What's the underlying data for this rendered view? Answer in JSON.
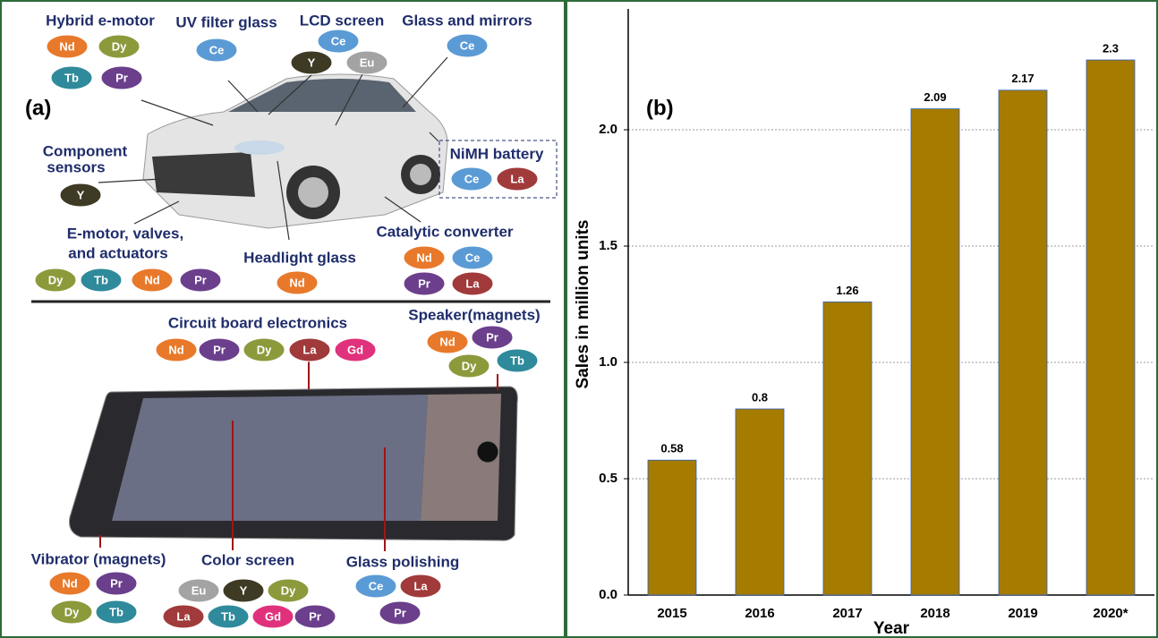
{
  "diagram": {
    "panel_label": "(a)",
    "colors": {
      "Nd": "#e8792a",
      "Dy": "#8c9a3b",
      "Tb": "#2f8a9b",
      "Pr": "#6b3f8c",
      "Ce": "#5b9bd5",
      "Y": "#3f3a24",
      "Eu": "#a3a3a3",
      "La": "#a13a3a",
      "Gd": "#e0327c"
    },
    "groups": [
      {
        "label": [
          "Hybrid e-motor"
        ],
        "elements": [
          "Nd",
          "Dy",
          "Tb",
          "Pr"
        ]
      },
      {
        "label": [
          "UV filter glass"
        ],
        "elements": [
          "Ce"
        ]
      },
      {
        "label": [
          "LCD screen"
        ],
        "elements": [
          "Ce",
          "Y",
          "Eu"
        ]
      },
      {
        "label": [
          "Glass and mirrors"
        ],
        "elements": [
          "Ce"
        ]
      },
      {
        "label": [
          "Component",
          "sensors"
        ],
        "elements": [
          "Y"
        ]
      },
      {
        "label": [
          "NiMH battery"
        ],
        "elements": [
          "Ce",
          "La"
        ]
      },
      {
        "label": [
          "E-motor, valves,",
          "and actuators"
        ],
        "elements": [
          "Dy",
          "Tb",
          "Nd",
          "Pr"
        ]
      },
      {
        "label": [
          "Headlight glass"
        ],
        "elements": [
          "Nd"
        ]
      },
      {
        "label": [
          "Catalytic converter"
        ],
        "elements": [
          "Nd",
          "Ce",
          "Pr",
          "La"
        ]
      },
      {
        "label": [
          "Circuit board electronics"
        ],
        "elements": [
          "Nd",
          "Pr",
          "Dy",
          "La",
          "Gd"
        ]
      },
      {
        "label": [
          "Speaker(magnets)"
        ],
        "elements": [
          "Nd",
          "Pr",
          "Dy",
          "Tb"
        ]
      },
      {
        "label": [
          "Vibrator (magnets)"
        ],
        "elements": [
          "Nd",
          "Pr",
          "Dy",
          "Tb"
        ]
      },
      {
        "label": [
          "Color screen"
        ],
        "elements": [
          "Eu",
          "Y",
          "Dy",
          "La",
          "Tb",
          "Gd",
          "Pr"
        ]
      },
      {
        "label": [
          "Glass polishing"
        ],
        "elements": [
          "Ce",
          "La",
          "Pr"
        ]
      }
    ]
  },
  "chart_data": {
    "type": "bar",
    "panel_label": "(b)",
    "categories": [
      "2015",
      "2016",
      "2017",
      "2018",
      "2019",
      "2020*"
    ],
    "values": [
      0.58,
      0.8,
      1.26,
      2.09,
      2.17,
      2.3
    ],
    "color": "#a57c00",
    "xlabel": "Year",
    "ylabel": "Sales in million units",
    "ylim": [
      0,
      2.5
    ],
    "yticks": [
      {
        "value": 0,
        "label": "0.0"
      },
      0.5,
      {
        "value": 1,
        "label": "1.0"
      },
      1.5,
      {
        "value": 2,
        "label": "2.0"
      }
    ],
    "grid": true
  }
}
